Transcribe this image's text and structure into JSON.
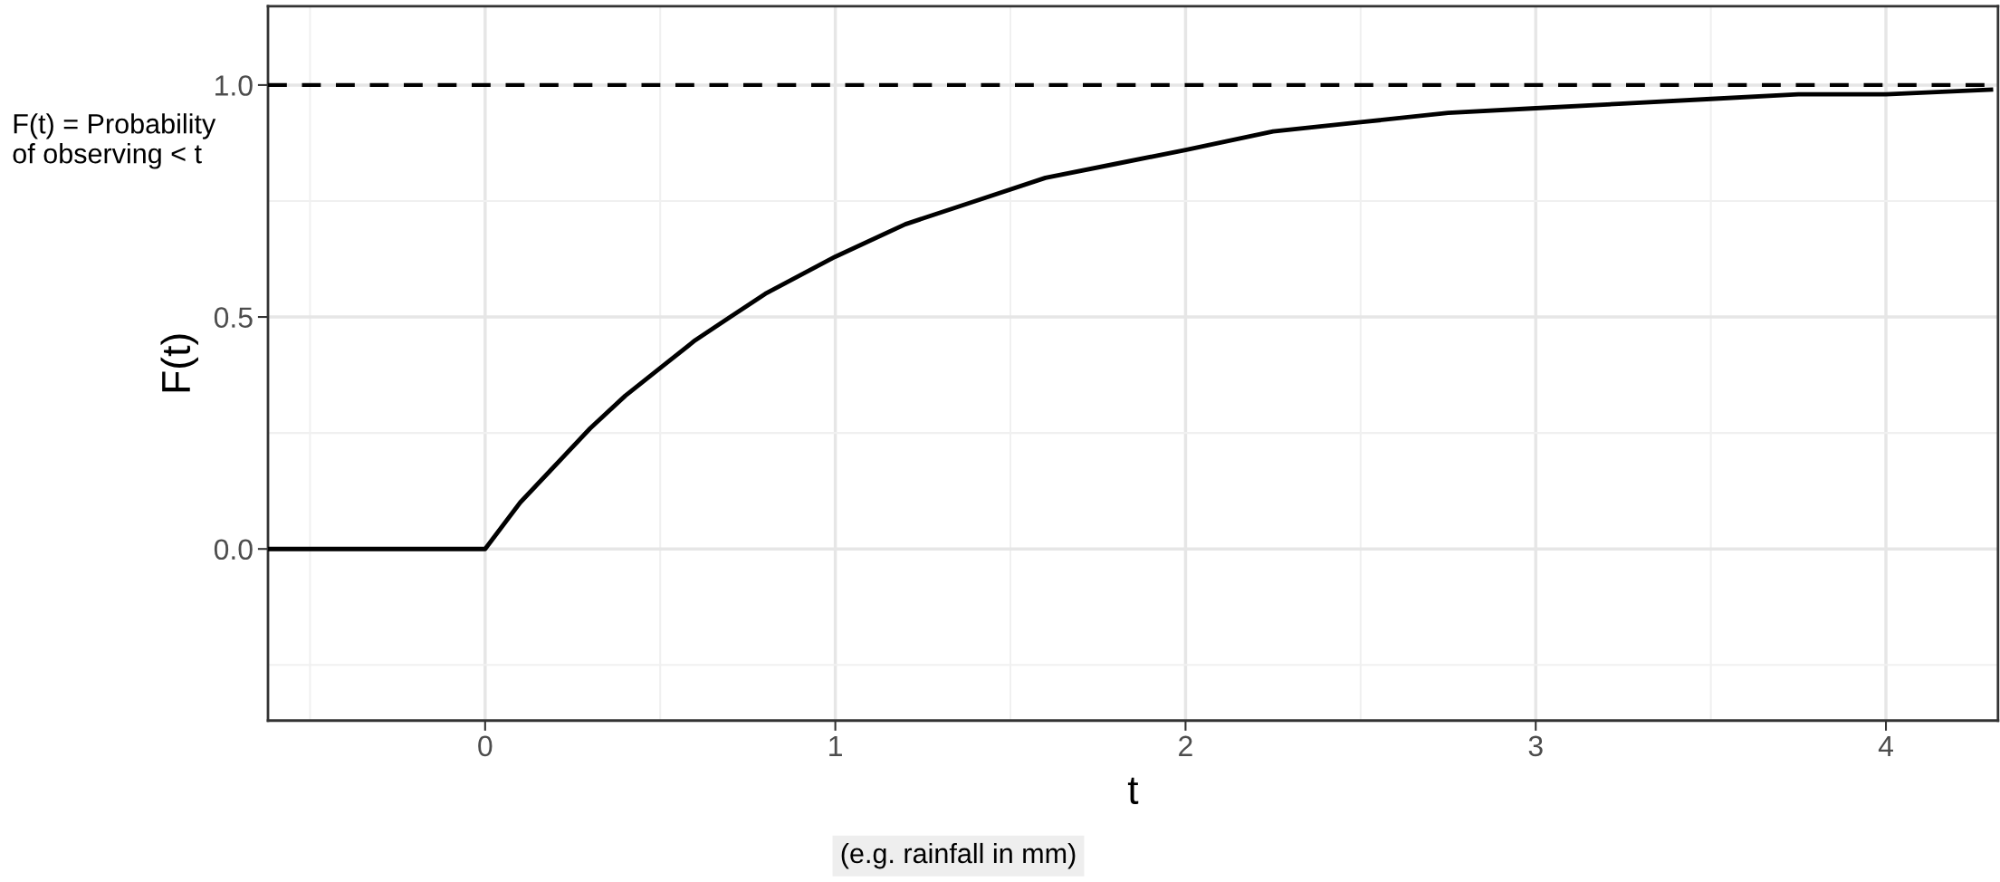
{
  "chart_data": {
    "type": "line",
    "xlabel": "t",
    "ylabel": "F(t)",
    "x": [
      -0.62,
      0,
      0.1,
      0.2,
      0.3,
      0.4,
      0.5,
      0.6,
      0.7,
      0.8,
      0.9,
      1,
      1.2,
      1.4,
      1.6,
      1.8,
      2,
      2.25,
      2.5,
      2.75,
      3,
      3.25,
      3.5,
      3.75,
      4,
      4.3
    ],
    "series": [
      {
        "color": "#000000",
        "values": [
          0,
          0,
          0.1,
          0.18,
          0.26,
          0.33,
          0.39,
          0.45,
          0.5,
          0.55,
          0.59,
          0.63,
          0.7,
          0.75,
          0.8,
          0.83,
          0.86,
          0.9,
          0.92,
          0.94,
          0.95,
          0.96,
          0.97,
          0.98,
          0.98,
          0.99
        ]
      }
    ],
    "xlim": [
      -0.62,
      4.32
    ],
    "ylim": [
      -0.37,
      1.17
    ],
    "xticks": [
      0,
      1,
      2,
      3,
      4
    ],
    "yticks": [
      {
        "value": 0,
        "label": "0.0"
      },
      {
        "value": 0.5,
        "label": "0.5"
      },
      {
        "value": 1,
        "label": "1.0"
      }
    ],
    "ref_lines": [
      {
        "axis": "y",
        "value": 1,
        "color": "#000000",
        "line_style": "dashed"
      }
    ],
    "annotations": [
      "F(t) = Probability\nof observing < t",
      "(e.g. rainfall in mm)"
    ],
    "grid": true,
    "legend": false,
    "marker": "none",
    "line_style": "solid"
  }
}
